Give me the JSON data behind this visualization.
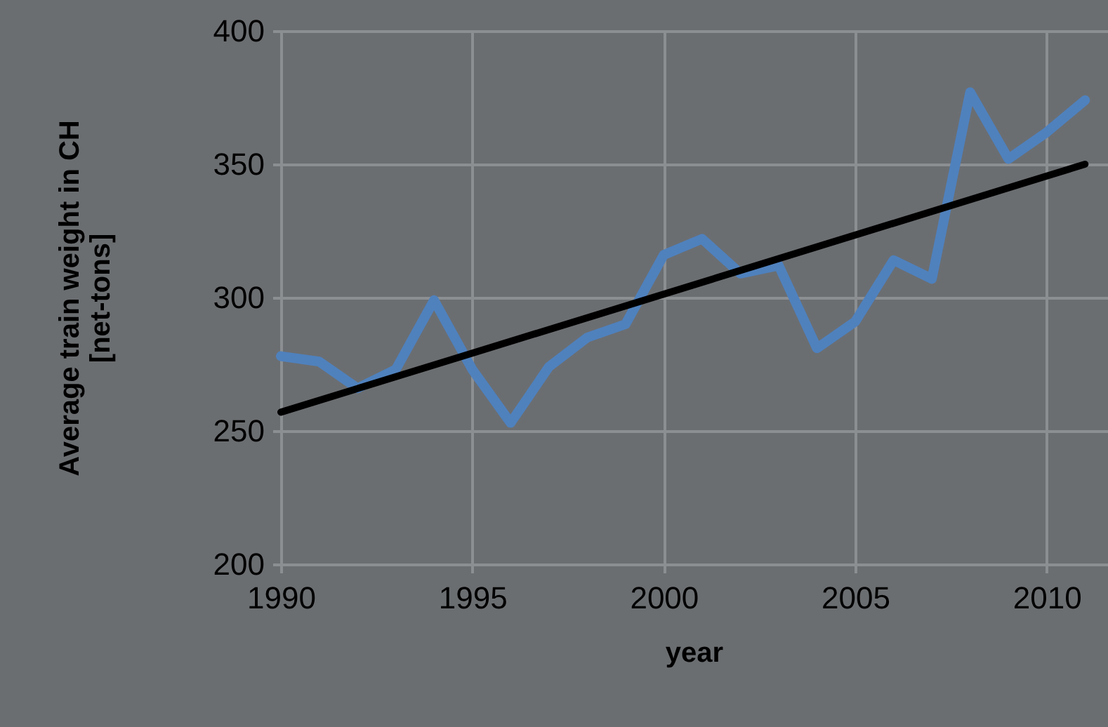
{
  "chart_data": {
    "type": "line",
    "xlabel": "year",
    "ylabel": "Average train weight in CH [net-tons]",
    "x": [
      1990,
      1991,
      1992,
      1993,
      1994,
      1995,
      1996,
      1997,
      1998,
      1999,
      2000,
      2001,
      2002,
      2003,
      2004,
      2005,
      2006,
      2007,
      2008,
      2009,
      2010,
      2011
    ],
    "series": [
      {
        "color": "#4f81bd",
        "values": [
          278,
          276,
          266,
          273,
          299,
          273,
          253,
          274,
          285,
          290,
          316,
          322,
          309,
          312,
          281,
          291,
          314,
          307,
          377,
          352,
          362,
          374
        ]
      },
      {
        "type": "line",
        "color": "#000000",
        "x": [
          1990,
          2011
        ],
        "values": [
          257,
          350
        ]
      }
    ],
    "xlim": [
      1990,
      2011.6
    ],
    "xticks": [
      1990,
      1995,
      2000,
      2005,
      2010
    ],
    "ylim": [
      200,
      400
    ],
    "yticks": [
      200,
      250,
      300,
      350,
      400
    ],
    "grid": true,
    "marker": "none",
    "line_style": "solid"
  }
}
